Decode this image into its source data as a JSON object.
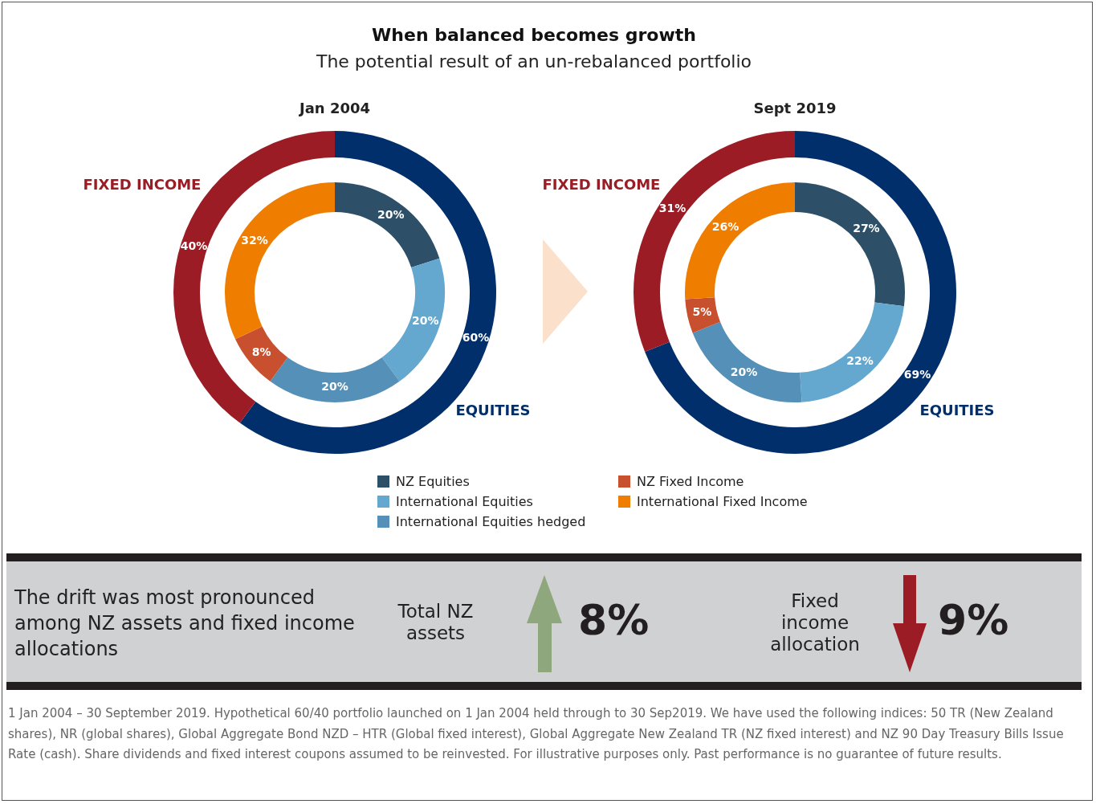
{
  "chart_data": [
    {
      "type": "other",
      "title": "When balanced becomes growth",
      "subtitle": "The potential result of an un-rebalanced portfolio"
    },
    {
      "type": "donut",
      "title": "Jan 2004",
      "categories": [
        "EQUITIES",
        "FIXED INCOME"
      ],
      "values": [
        60,
        40
      ],
      "colors": [
        "#002f6c",
        "#9b1c24"
      ],
      "value_labels": [
        "60%",
        "40%"
      ]
    },
    {
      "type": "donut",
      "legend": "bottom",
      "categories": [
        "NZ Equities",
        "International Equities",
        "International Equities hedged",
        "NZ Fixed Income",
        "International Fixed Income"
      ],
      "values": [
        20,
        20,
        20,
        8,
        32
      ],
      "colors": [
        "#2d5068",
        "#64a8d0",
        "#5590b8",
        "#c8502e",
        "#ef7d00"
      ],
      "value_labels": [
        "20%",
        "20%",
        "20%",
        "8%",
        "32%"
      ]
    },
    {
      "type": "donut",
      "title": "Sept 2019",
      "categories": [
        "EQUITIES",
        "FIXED INCOME"
      ],
      "values": [
        69,
        31
      ],
      "colors": [
        "#002f6c",
        "#9b1c24"
      ],
      "value_labels": [
        "69%",
        "31%"
      ]
    },
    {
      "type": "donut",
      "categories": [
        null,
        null,
        null,
        null,
        null
      ],
      "values": [
        27,
        22,
        20,
        5,
        26
      ],
      "colors": [
        "#2d5068",
        "#64a8d0",
        "#5590b8",
        "#c8502e",
        "#ef7d00"
      ],
      "value_labels": [
        "27%",
        "22%",
        "20%",
        "5%",
        "26%"
      ]
    },
    {
      "type": "other",
      "annotations": [
        "The drift was most pronounced among NZ assets and fixed income allocations",
        "Total NZ assets",
        "8%",
        "Fixed income allocation",
        "9%",
        "1 Jan 2004 – 30 September 2019. Hypothetical 60/40 portfolio launched on 1 Jan 2004 held through to 30 Sep2019. We have used the following indices: 50 TR (New Zealand shares), NR (global shares), Global Aggregate Bond NZD – HTR (Global fixed interest), Global Aggregate New Zealand TR (NZ fixed interest) and NZ 90 Day Treasury Bills Issue Rate (cash). Share dividends and fixed interest coupons assumed to be reinvested. For illustrative purposes only. Past performance is no guarantee of future results."
      ]
    }
  ]
}
